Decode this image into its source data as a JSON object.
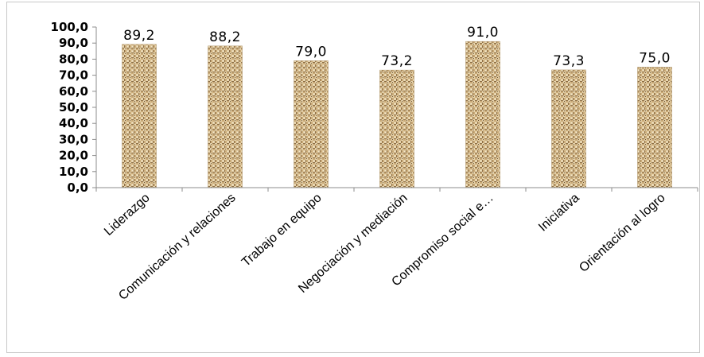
{
  "chart_data": {
    "type": "bar",
    "title": "",
    "xlabel": "",
    "ylabel": "",
    "ylim": [
      0,
      100
    ],
    "ytick_step": 10,
    "ytick_labels": [
      "0,0",
      "10,0",
      "20,0",
      "30,0",
      "40,0",
      "50,0",
      "60,0",
      "70,0",
      "80,0",
      "90,0",
      "100,0"
    ],
    "categories": [
      "Liderazgo",
      "Comunicación y relaciones",
      "Trabajo en equipo",
      "Negociación y mediación",
      "Compromiso social e…",
      "Iniciativa",
      "Orientación al logro"
    ],
    "values": [
      89.2,
      88.2,
      79.0,
      73.2,
      91.0,
      73.3,
      75.0
    ],
    "value_labels": [
      "89,2",
      "88,2",
      "79,0",
      "73,2",
      "91,0",
      "73,3",
      "75,0"
    ],
    "grid": false,
    "legend": "none",
    "bar_fill": "burlap-texture",
    "colors": {
      "bar_base": "#c9aa78",
      "bar_dark": "#7a5f3a",
      "bar_light": "#efe0bf",
      "axis": "#8c8c8c"
    }
  }
}
